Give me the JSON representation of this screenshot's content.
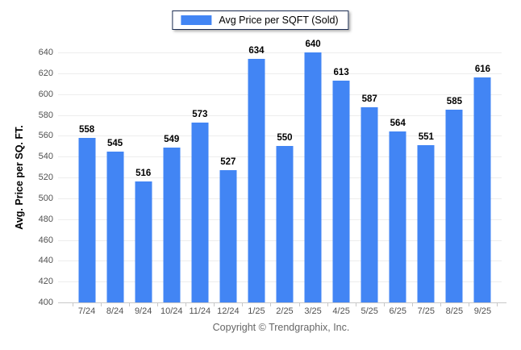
{
  "legend": {
    "label": "Avg Price per SQFT (Sold)",
    "swatch_color": "#4285F4"
  },
  "footer": {
    "copyright": "Copyright © Trendgraphix, Inc."
  },
  "chart_data": {
    "type": "bar",
    "title": "",
    "xlabel": "",
    "ylabel": "Avg. Price per SQ. FT.",
    "categories": [
      "7/24",
      "8/24",
      "9/24",
      "10/24",
      "11/24",
      "12/24",
      "1/25",
      "2/25",
      "3/25",
      "4/25",
      "5/25",
      "6/25",
      "7/25",
      "8/25",
      "9/25"
    ],
    "values": [
      558,
      545,
      516,
      549,
      573,
      527,
      634,
      550,
      640,
      613,
      587,
      564,
      551,
      585,
      616
    ],
    "ylim": [
      400,
      640
    ],
    "ytick_step": 20,
    "grid": "horizontal",
    "legend_position": "top-center",
    "legend_entries": [
      "Avg Price per SQFT (Sold)"
    ],
    "bar_color": "#4285F4"
  },
  "colors": {
    "bar": "#4285F4",
    "gridline": "#ededed",
    "axis_line": "#c8c8c8",
    "tick_text": "#515151",
    "value_label": "#000000",
    "legend_border": "#1c2d52",
    "copyright_text": "#666666",
    "background": "#ffffff"
  }
}
